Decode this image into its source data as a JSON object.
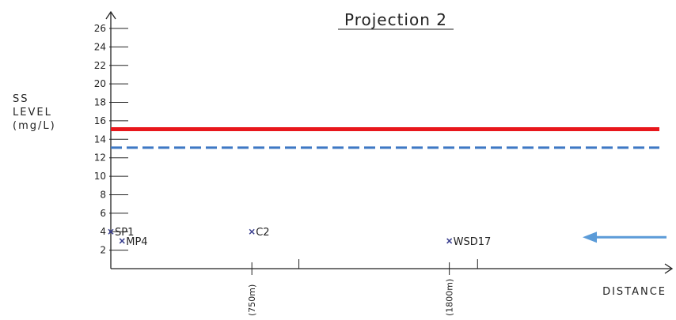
{
  "chart_data": {
    "type": "scatter",
    "title": "Projection 2",
    "ylabel_lines": [
      "SS",
      "LEVEL",
      "(mg/L)"
    ],
    "xlabel": "DISTANCE",
    "ylim": [
      0,
      27
    ],
    "y_ticks": [
      2,
      4,
      6,
      8,
      10,
      12,
      14,
      16,
      18,
      20,
      22,
      24,
      26
    ],
    "x_markers": [
      {
        "label": "(750m)",
        "distance_m": 750
      },
      {
        "label": "(1800m)",
        "distance_m": 1800
      }
    ],
    "x_minor_ticks_m": [
      1000,
      1950
    ],
    "xlim_m": [
      0,
      2980
    ],
    "points": [
      {
        "label": "SP1",
        "distance_m": 0,
        "value": 4.0
      },
      {
        "label": "MP4",
        "distance_m": 60,
        "value": 3.0
      },
      {
        "label": "C2",
        "distance_m": 750,
        "value": 4.0
      },
      {
        "label": "WSD17",
        "distance_m": 1800,
        "value": 3.0
      }
    ],
    "reference_lines": [
      {
        "value": 15.1,
        "style": "solid",
        "color": "#e8171c"
      },
      {
        "value": 13.1,
        "style": "dashed",
        "color": "#3d78c4"
      }
    ],
    "arrow": {
      "value": 3.4,
      "color": "#5b9bd8",
      "direction": "left"
    },
    "axis_color": "#222222",
    "point_color": "#3a3f8f"
  }
}
